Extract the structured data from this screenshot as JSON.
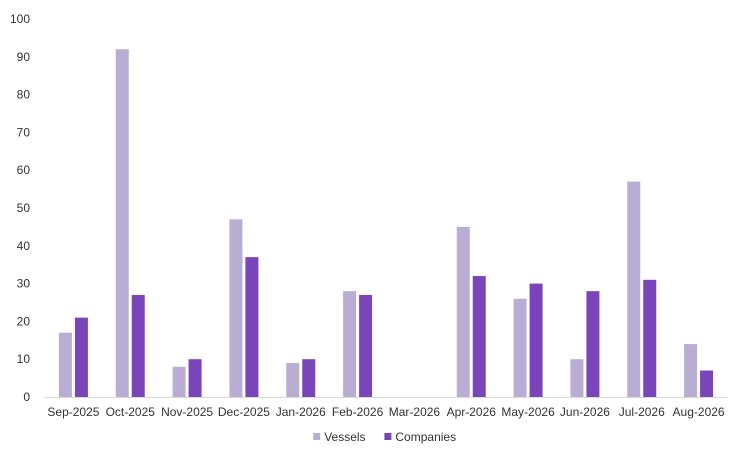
{
  "chart_data": {
    "type": "bar",
    "title": "",
    "xlabel": "",
    "ylabel": "",
    "ylim": [
      0,
      100
    ],
    "yticks": [
      0,
      10,
      20,
      30,
      40,
      50,
      60,
      70,
      80,
      90,
      100
    ],
    "grid": false,
    "legend_position": "bottom",
    "categories": [
      "Sep-2025",
      "Oct-2025",
      "Nov-2025",
      "Dec-2025",
      "Jan-2026",
      "Feb-2026",
      "Mar-2026",
      "Apr-2026",
      "May-2026",
      "Jun-2026",
      "Jul-2026",
      "Aug-2026"
    ],
    "series": [
      {
        "name": "Vessels",
        "color": "#B9ADD4",
        "values": [
          17,
          92,
          8,
          47,
          9,
          28,
          0,
          45,
          26,
          10,
          57,
          14
        ]
      },
      {
        "name": "Companies",
        "color": "#7A45B8",
        "values": [
          21,
          27,
          10,
          37,
          10,
          27,
          0,
          32,
          30,
          28,
          31,
          7
        ]
      }
    ]
  }
}
